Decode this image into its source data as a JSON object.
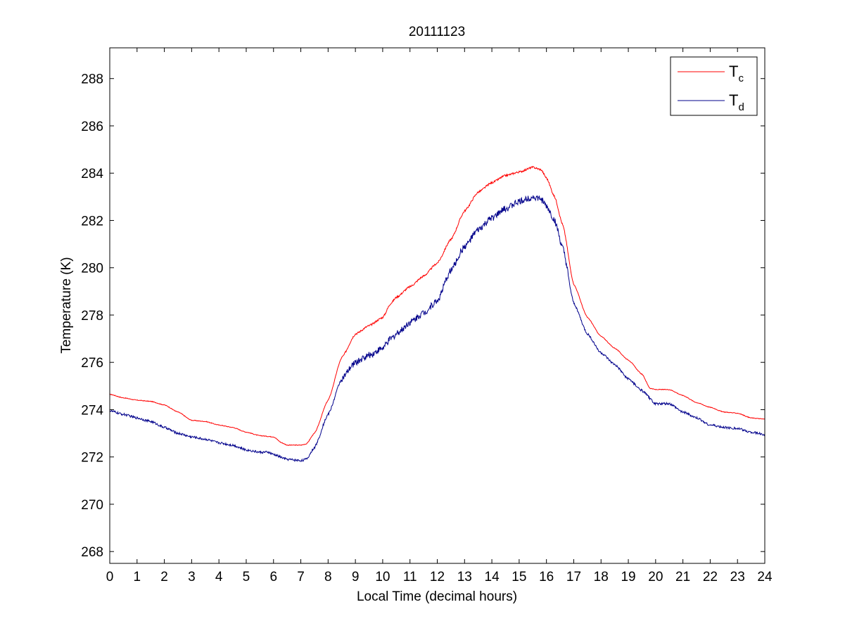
{
  "chart_data": {
    "type": "line",
    "title": "20111123",
    "xlabel": "Local Time (decimal hours)",
    "ylabel": "Temperature (K)",
    "xlim": [
      0,
      24
    ],
    "ylim": [
      267.5,
      289.3
    ],
    "xticks": [
      0,
      1,
      2,
      3,
      4,
      5,
      6,
      7,
      8,
      9,
      10,
      11,
      12,
      13,
      14,
      15,
      16,
      17,
      18,
      19,
      20,
      21,
      22,
      23,
      24
    ],
    "yticks": [
      268,
      270,
      272,
      274,
      276,
      278,
      280,
      282,
      284,
      286,
      288
    ],
    "grid": false,
    "legend_position": "top-right",
    "series": [
      {
        "name": "T",
        "subscript": "c",
        "color": "#ff0000",
        "noise": 0.04,
        "points": [
          [
            0,
            274.65
          ],
          [
            0.5,
            274.5
          ],
          [
            1,
            274.4
          ],
          [
            1.5,
            274.35
          ],
          [
            2,
            274.2
          ],
          [
            2.5,
            273.9
          ],
          [
            3,
            273.55
          ],
          [
            3.5,
            273.5
          ],
          [
            4,
            273.35
          ],
          [
            4.5,
            273.25
          ],
          [
            5,
            273.05
          ],
          [
            5.5,
            272.9
          ],
          [
            6,
            272.85
          ],
          [
            6.3,
            272.6
          ],
          [
            6.5,
            272.5
          ],
          [
            7,
            272.5
          ],
          [
            7.2,
            272.55
          ],
          [
            7.5,
            273.0
          ],
          [
            8,
            274.4
          ],
          [
            8.5,
            276.2
          ],
          [
            9,
            277.2
          ],
          [
            9.5,
            277.55
          ],
          [
            10,
            277.9
          ],
          [
            10.3,
            278.5
          ],
          [
            10.5,
            278.75
          ],
          [
            11,
            279.2
          ],
          [
            11.5,
            279.65
          ],
          [
            12,
            280.2
          ],
          [
            12.5,
            281.2
          ],
          [
            13,
            282.4
          ],
          [
            13.5,
            283.2
          ],
          [
            14,
            283.6
          ],
          [
            14.5,
            283.9
          ],
          [
            15,
            284.05
          ],
          [
            15.5,
            284.25
          ],
          [
            15.8,
            284.15
          ],
          [
            16,
            283.8
          ],
          [
            16.3,
            283.0
          ],
          [
            16.6,
            281.8
          ],
          [
            17,
            279.3
          ],
          [
            17.5,
            277.9
          ],
          [
            18,
            277.1
          ],
          [
            18.5,
            276.6
          ],
          [
            19,
            276.1
          ],
          [
            19.5,
            275.5
          ],
          [
            19.8,
            274.9
          ],
          [
            20,
            274.85
          ],
          [
            20.5,
            274.85
          ],
          [
            21,
            274.6
          ],
          [
            21.5,
            274.3
          ],
          [
            22,
            274.1
          ],
          [
            22.5,
            273.9
          ],
          [
            23,
            273.85
          ],
          [
            23.5,
            273.65
          ],
          [
            24,
            273.6
          ]
        ]
      },
      {
        "name": "T",
        "subscript": "d",
        "color": "#00008b",
        "noise": 0.14,
        "points": [
          [
            0,
            273.95
          ],
          [
            0.5,
            273.8
          ],
          [
            1,
            273.65
          ],
          [
            1.5,
            273.5
          ],
          [
            2,
            273.25
          ],
          [
            2.5,
            273.0
          ],
          [
            3,
            272.85
          ],
          [
            3.5,
            272.75
          ],
          [
            4,
            272.6
          ],
          [
            4.5,
            272.5
          ],
          [
            5,
            272.3
          ],
          [
            5.5,
            272.2
          ],
          [
            5.8,
            272.2
          ],
          [
            6,
            272.1
          ],
          [
            6.5,
            271.9
          ],
          [
            7,
            271.85
          ],
          [
            7.2,
            271.9
          ],
          [
            7.5,
            272.4
          ],
          [
            8,
            273.8
          ],
          [
            8.5,
            275.3
          ],
          [
            9,
            276.0
          ],
          [
            9.5,
            276.3
          ],
          [
            10,
            276.6
          ],
          [
            10.3,
            277.0
          ],
          [
            10.6,
            277.3
          ],
          [
            11,
            277.7
          ],
          [
            11.5,
            278.1
          ],
          [
            12,
            278.6
          ],
          [
            12.5,
            279.9
          ],
          [
            13,
            280.9
          ],
          [
            13.5,
            281.6
          ],
          [
            14,
            282.1
          ],
          [
            14.5,
            282.5
          ],
          [
            15,
            282.8
          ],
          [
            15.5,
            283.0
          ],
          [
            15.8,
            282.9
          ],
          [
            16,
            282.6
          ],
          [
            16.3,
            282.0
          ],
          [
            16.6,
            280.8
          ],
          [
            17,
            278.5
          ],
          [
            17.5,
            277.2
          ],
          [
            18,
            276.4
          ],
          [
            18.5,
            275.9
          ],
          [
            19,
            275.3
          ],
          [
            19.5,
            274.8
          ],
          [
            20,
            274.25
          ],
          [
            20.5,
            274.25
          ],
          [
            21,
            273.9
          ],
          [
            21.5,
            273.65
          ],
          [
            22,
            273.35
          ],
          [
            22.5,
            273.25
          ],
          [
            23,
            273.2
          ],
          [
            23.5,
            273.05
          ],
          [
            24,
            272.95
          ]
        ]
      }
    ]
  }
}
